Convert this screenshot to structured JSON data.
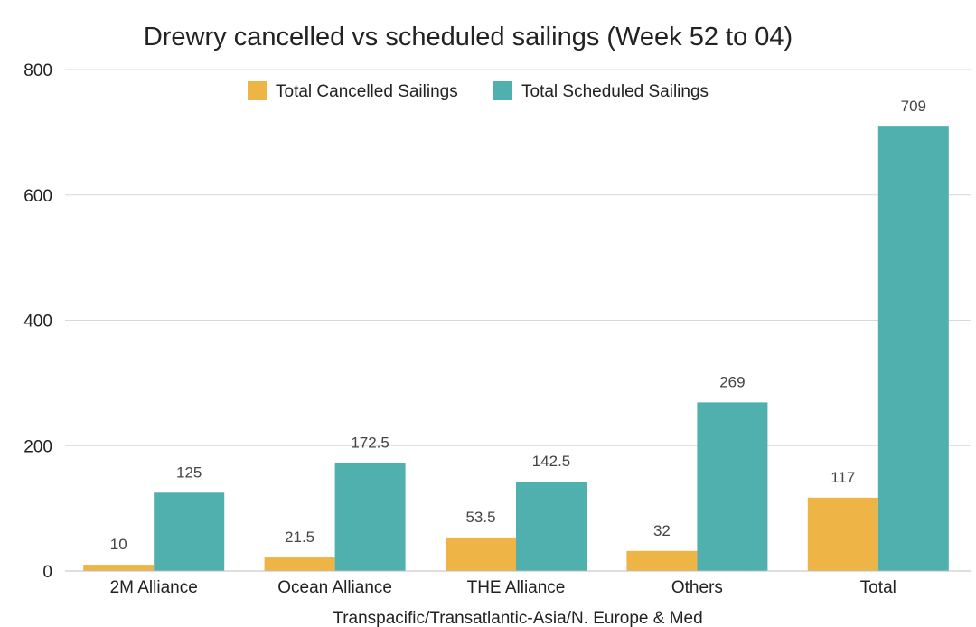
{
  "chart_data": {
    "type": "bar",
    "title": "Drewry cancelled vs scheduled sailings (Week 52 to 04)",
    "xlabel": "Transpacific/Transatlantic-Asia/N. Europe & Med",
    "ylabel": "",
    "ylim": [
      0,
      800
    ],
    "yticks": [
      "0",
      "200",
      "400",
      "600",
      "800"
    ],
    "categories": [
      "2M Alliance",
      "Ocean Alliance",
      "THE Alliance",
      "Others",
      "Total"
    ],
    "series": [
      {
        "name": "Total Cancelled Sailings",
        "color": "#EEB446",
        "values": [
          10,
          21.5,
          53.5,
          32,
          117
        ],
        "labels": [
          "10",
          "21.5",
          "53.5",
          "32",
          "117"
        ]
      },
      {
        "name": "Total Scheduled Sailings",
        "color": "#4FB0AE",
        "values": [
          125,
          172.5,
          142.5,
          269,
          709
        ],
        "labels": [
          "125",
          "172.5",
          "142.5",
          "269",
          "709"
        ]
      }
    ],
    "grid": true,
    "legend_position": "top-center"
  }
}
